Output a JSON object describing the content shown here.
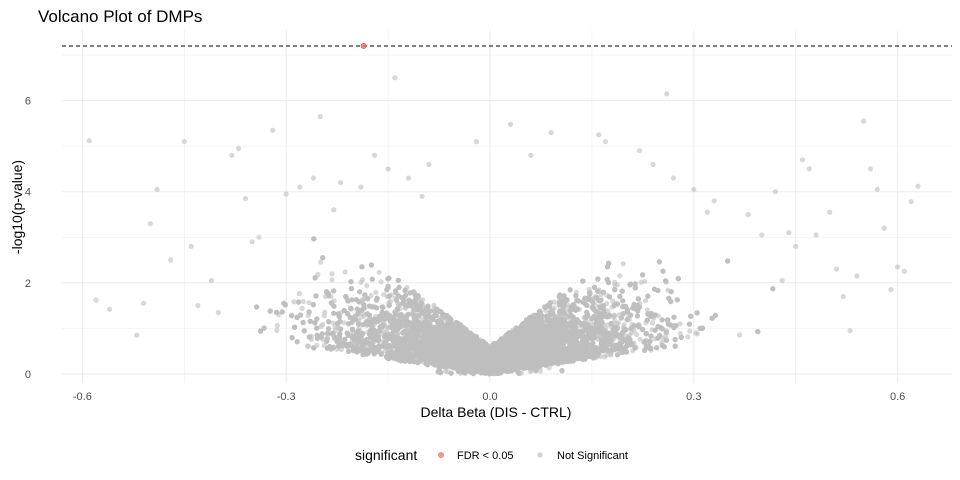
{
  "chart_data": {
    "type": "scatter",
    "title": "Volcano Plot of DMPs",
    "xlabel": "Delta Beta (DIS - CTRL)",
    "ylabel": "-log10(p-value)",
    "xlim": [
      -0.63,
      0.68
    ],
    "ylim": [
      -0.2,
      7.55
    ],
    "x_ticks": [
      -0.6,
      -0.3,
      0.0,
      0.3,
      0.6
    ],
    "x_tick_labels": [
      "-0.6",
      "-0.3",
      "0.0",
      "0.3",
      "0.6"
    ],
    "y_ticks": [
      0,
      2,
      4,
      6
    ],
    "y_tick_labels": [
      "0",
      "2",
      "4",
      "6"
    ],
    "grid": true,
    "threshold_line": {
      "y": 7.2,
      "style": "dashed",
      "color": "#000000"
    },
    "legend": {
      "title": "significant",
      "placement": "bottom",
      "entries": [
        {
          "label": "FDR < 0.05",
          "color": "#F8766D"
        },
        {
          "label": "Not Significant",
          "color": "#BEBEBE"
        }
      ]
    },
    "series": [
      {
        "name": "FDR < 0.05",
        "color": "#F8766D",
        "points": [
          [
            -0.186,
            7.2
          ]
        ]
      },
      {
        "name": "Not Significant",
        "color": "#BEBEBE",
        "points": [
          [
            -0.59,
            5.12
          ],
          [
            -0.58,
            1.62
          ],
          [
            -0.56,
            1.42
          ],
          [
            -0.52,
            0.85
          ],
          [
            -0.51,
            1.55
          ],
          [
            -0.5,
            3.3
          ],
          [
            -0.49,
            4.05
          ],
          [
            -0.47,
            2.5
          ],
          [
            -0.45,
            5.1
          ],
          [
            -0.44,
            2.8
          ],
          [
            -0.43,
            1.5
          ],
          [
            -0.41,
            2.05
          ],
          [
            -0.4,
            1.35
          ],
          [
            -0.38,
            4.8
          ],
          [
            -0.37,
            4.95
          ],
          [
            -0.36,
            3.85
          ],
          [
            -0.35,
            2.9
          ],
          [
            -0.34,
            3.0
          ],
          [
            -0.32,
            5.35
          ],
          [
            -0.3,
            3.95
          ],
          [
            -0.28,
            4.1
          ],
          [
            -0.26,
            4.3
          ],
          [
            -0.25,
            5.65
          ],
          [
            -0.23,
            3.6
          ],
          [
            -0.22,
            4.2
          ],
          [
            -0.19,
            4.1
          ],
          [
            -0.17,
            4.8
          ],
          [
            -0.15,
            4.5
          ],
          [
            -0.14,
            6.5
          ],
          [
            -0.12,
            4.3
          ],
          [
            -0.1,
            3.9
          ],
          [
            -0.09,
            4.6
          ],
          [
            -0.02,
            5.1
          ],
          [
            0.03,
            5.48
          ],
          [
            0.06,
            4.8
          ],
          [
            0.09,
            5.3
          ],
          [
            0.16,
            5.25
          ],
          [
            0.17,
            5.1
          ],
          [
            0.22,
            4.9
          ],
          [
            0.24,
            4.6
          ],
          [
            0.26,
            6.15
          ],
          [
            0.27,
            4.3
          ],
          [
            0.3,
            4.05
          ],
          [
            0.32,
            3.55
          ],
          [
            0.33,
            3.8
          ],
          [
            0.38,
            3.5
          ],
          [
            0.4,
            3.05
          ],
          [
            0.42,
            4.0
          ],
          [
            0.43,
            2.05
          ],
          [
            0.44,
            3.1
          ],
          [
            0.45,
            2.8
          ],
          [
            0.46,
            4.7
          ],
          [
            0.47,
            4.5
          ],
          [
            0.48,
            3.05
          ],
          [
            0.5,
            3.55
          ],
          [
            0.51,
            2.3
          ],
          [
            0.52,
            1.7
          ],
          [
            0.53,
            0.95
          ],
          [
            0.54,
            2.15
          ],
          [
            0.55,
            5.55
          ],
          [
            0.56,
            4.5
          ],
          [
            0.57,
            4.05
          ],
          [
            0.58,
            3.2
          ],
          [
            0.59,
            1.85
          ],
          [
            0.6,
            2.35
          ],
          [
            0.61,
            2.25
          ],
          [
            0.62,
            3.78
          ],
          [
            0.63,
            4.12
          ]
        ],
        "dense_region": {
          "description_count": 12000,
          "x_range": [
            -0.42,
            0.42
          ],
          "y_range": [
            0,
            4.2
          ],
          "shape": "v-shaped volcano centered near 0"
        }
      }
    ]
  }
}
